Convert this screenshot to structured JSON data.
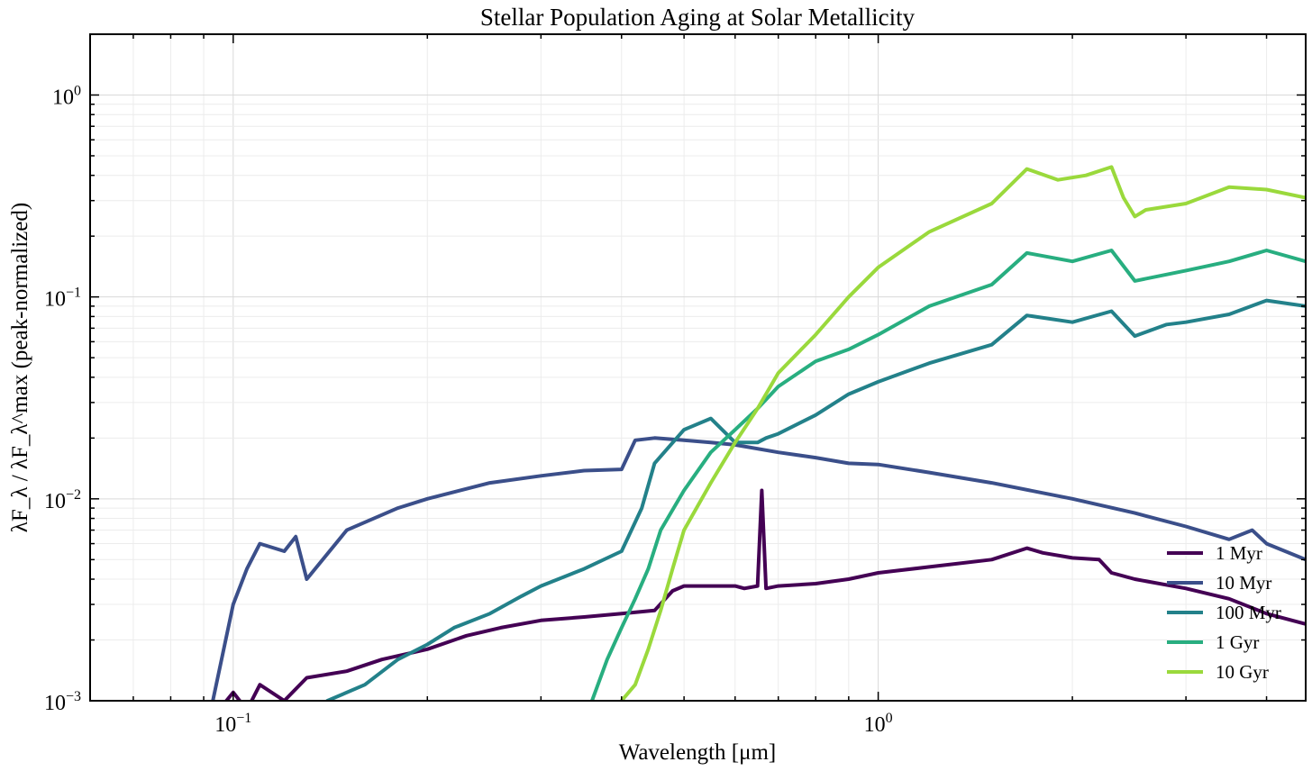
{
  "chart_data": {
    "type": "line",
    "title": "Stellar Population Aging at Solar Metallicity",
    "xlabel": "Wavelength [μm]",
    "ylabel": "λF_λ / λF_λ^max (peak-normalized)",
    "xscale": "log",
    "yscale": "log",
    "xlim": [
      0.06,
      4.6
    ],
    "ylim": [
      0.001,
      2.0
    ],
    "xticks": [
      {
        "value": 0.1,
        "base": "10",
        "exp": "−1"
      },
      {
        "value": 1,
        "base": "10",
        "exp": "0"
      }
    ],
    "yticks": [
      {
        "value": 0.001,
        "base": "10",
        "exp": "−3"
      },
      {
        "value": 0.01,
        "base": "10",
        "exp": "−2"
      },
      {
        "value": 0.1,
        "base": "10",
        "exp": "−1"
      },
      {
        "value": 1,
        "base": "10",
        "exp": "0"
      }
    ],
    "grid": true,
    "legend_position": "lower-right",
    "series": [
      {
        "name": "1 Myr",
        "color": "#440154",
        "x": [
          0.095,
          0.1,
          0.105,
          0.11,
          0.12,
          0.13,
          0.15,
          0.17,
          0.2,
          0.23,
          0.26,
          0.3,
          0.35,
          0.4,
          0.45,
          0.48,
          0.5,
          0.55,
          0.6,
          0.62,
          0.65,
          0.66,
          0.67,
          0.7,
          0.8,
          0.9,
          1.0,
          1.2,
          1.5,
          1.7,
          1.8,
          2.0,
          2.2,
          2.3,
          2.5,
          3.0,
          3.5,
          4.0,
          4.6
        ],
        "y": [
          0.0009,
          0.0011,
          0.0009,
          0.0012,
          0.001,
          0.0013,
          0.0014,
          0.0016,
          0.0018,
          0.0021,
          0.0023,
          0.0025,
          0.0026,
          0.0027,
          0.0028,
          0.0035,
          0.0037,
          0.0037,
          0.0037,
          0.0036,
          0.0037,
          0.011,
          0.0036,
          0.0037,
          0.0038,
          0.004,
          0.0043,
          0.0046,
          0.005,
          0.0057,
          0.0054,
          0.0051,
          0.005,
          0.0043,
          0.004,
          0.0036,
          0.0032,
          0.0027,
          0.0024
        ]
      },
      {
        "name": "10 Myr",
        "color": "#3b4f8a",
        "x": [
          0.093,
          0.1,
          0.105,
          0.11,
          0.12,
          0.125,
          0.13,
          0.15,
          0.18,
          0.2,
          0.25,
          0.3,
          0.35,
          0.4,
          0.42,
          0.45,
          0.5,
          0.55,
          0.6,
          0.7,
          0.8,
          0.9,
          1.0,
          1.2,
          1.5,
          2.0,
          2.5,
          3.0,
          3.5,
          3.8,
          4.0,
          4.6
        ],
        "y": [
          0.001,
          0.003,
          0.0045,
          0.006,
          0.0055,
          0.0065,
          0.004,
          0.007,
          0.009,
          0.01,
          0.012,
          0.013,
          0.0138,
          0.014,
          0.0195,
          0.02,
          0.0195,
          0.019,
          0.0185,
          0.017,
          0.016,
          0.015,
          0.0148,
          0.0135,
          0.012,
          0.01,
          0.0085,
          0.0073,
          0.0063,
          0.007,
          0.006,
          0.005
        ]
      },
      {
        "name": "100 Myr",
        "color": "#23818a",
        "x": [
          0.14,
          0.16,
          0.18,
          0.2,
          0.22,
          0.25,
          0.28,
          0.3,
          0.35,
          0.4,
          0.43,
          0.45,
          0.5,
          0.55,
          0.6,
          0.65,
          0.67,
          0.7,
          0.8,
          0.9,
          1.0,
          1.2,
          1.5,
          1.7,
          2.0,
          2.3,
          2.5,
          2.8,
          3.0,
          3.5,
          4.0,
          4.6
        ],
        "y": [
          0.001,
          0.0012,
          0.0016,
          0.0019,
          0.0023,
          0.0027,
          0.0033,
          0.0037,
          0.0045,
          0.0055,
          0.009,
          0.015,
          0.022,
          0.025,
          0.019,
          0.019,
          0.02,
          0.021,
          0.026,
          0.033,
          0.038,
          0.047,
          0.058,
          0.081,
          0.075,
          0.085,
          0.064,
          0.073,
          0.075,
          0.082,
          0.096,
          0.09
        ]
      },
      {
        "name": "1 Gyr",
        "color": "#28ae80",
        "x": [
          0.36,
          0.38,
          0.4,
          0.42,
          0.44,
          0.46,
          0.5,
          0.55,
          0.6,
          0.65,
          0.7,
          0.8,
          0.9,
          1.0,
          1.2,
          1.5,
          1.7,
          2.0,
          2.3,
          2.5,
          3.0,
          3.5,
          4.0,
          4.6
        ],
        "y": [
          0.001,
          0.0016,
          0.0023,
          0.0032,
          0.0045,
          0.007,
          0.011,
          0.017,
          0.022,
          0.028,
          0.036,
          0.048,
          0.055,
          0.065,
          0.09,
          0.115,
          0.165,
          0.15,
          0.17,
          0.12,
          0.135,
          0.15,
          0.17,
          0.15
        ]
      },
      {
        "name": "10 Gyr",
        "color": "#9ad93c",
        "x": [
          0.4,
          0.42,
          0.44,
          0.46,
          0.48,
          0.5,
          0.55,
          0.6,
          0.65,
          0.7,
          0.8,
          0.9,
          1.0,
          1.2,
          1.5,
          1.7,
          1.9,
          2.1,
          2.3,
          2.4,
          2.5,
          2.6,
          3.0,
          3.5,
          4.0,
          4.6
        ],
        "y": [
          0.001,
          0.0012,
          0.0018,
          0.0028,
          0.0045,
          0.007,
          0.012,
          0.019,
          0.028,
          0.042,
          0.065,
          0.1,
          0.14,
          0.21,
          0.29,
          0.43,
          0.38,
          0.4,
          0.44,
          0.31,
          0.25,
          0.27,
          0.29,
          0.35,
          0.34,
          0.31
        ]
      }
    ]
  }
}
